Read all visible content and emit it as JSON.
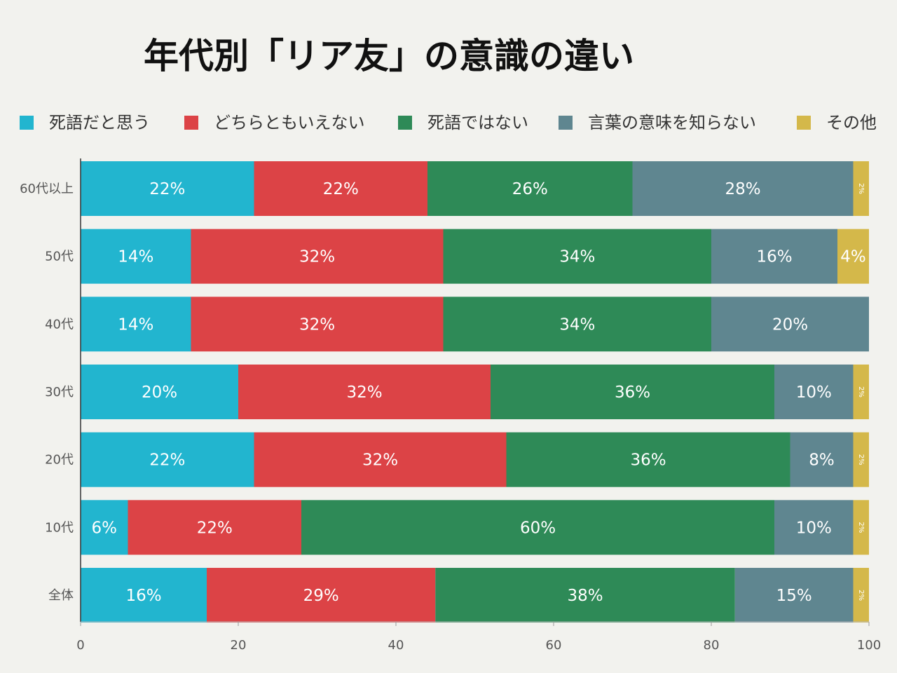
{
  "chart_data": {
    "type": "bar",
    "orientation": "horizontal",
    "stacked": true,
    "title": "年代別「リア友」の意識の違い",
    "categories": [
      "60代以上",
      "50代",
      "40代",
      "30代",
      "20代",
      "10代",
      "全体"
    ],
    "series": [
      {
        "name": "死語だと思う",
        "color": "#22b5cf",
        "values": [
          22,
          14,
          14,
          20,
          22,
          6,
          16
        ]
      },
      {
        "name": "どちらともいえない",
        "color": "#dc4346",
        "values": [
          22,
          32,
          32,
          32,
          32,
          22,
          29
        ]
      },
      {
        "name": "死語ではない",
        "color": "#2e8a57",
        "values": [
          26,
          34,
          34,
          36,
          36,
          60,
          38
        ]
      },
      {
        "name": "言葉の意味を知らない",
        "color": "#5f8690",
        "values": [
          28,
          16,
          20,
          10,
          8,
          10,
          15
        ]
      },
      {
        "name": "その他",
        "color": "#d4b84a",
        "values": [
          2,
          4,
          0,
          2,
          2,
          2,
          2
        ]
      }
    ],
    "data_label_suffix": "%",
    "xlim": [
      0,
      100
    ],
    "xticks": [
      0,
      20,
      40,
      60,
      80,
      100
    ],
    "legend_position": "top",
    "grid": false
  }
}
